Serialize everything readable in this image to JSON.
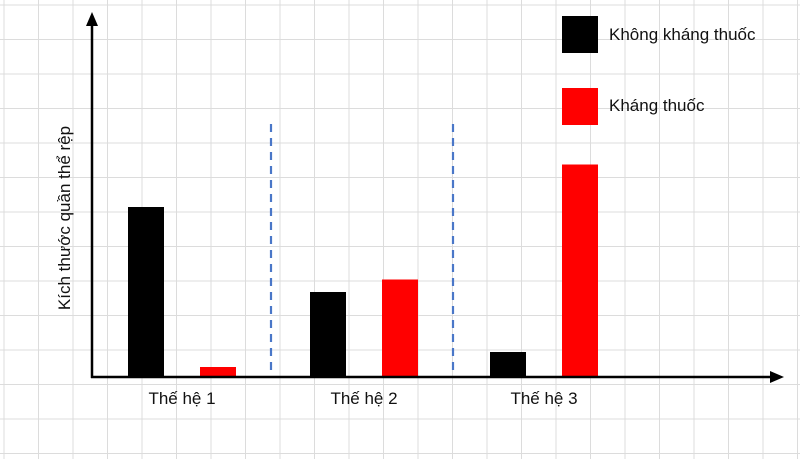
{
  "chart_data": {
    "type": "bar",
    "title": "",
    "xlabel": "",
    "ylabel": "Kích thước quần thể rệp",
    "categories": [
      "Thế hệ 1",
      "Thế hệ 2",
      "Thế hệ 3"
    ],
    "series": [
      {
        "name": "Không kháng thuốc",
        "color": "#000000",
        "values": [
          6.8,
          3.4,
          1.0
        ]
      },
      {
        "name": "Kháng thuốc",
        "color": "#ff0000",
        "values": [
          0.4,
          3.9,
          8.5
        ]
      }
    ],
    "ylim": [
      0,
      14
    ],
    "grid": true,
    "legend": "top-right",
    "axis_tick_labels": false,
    "separators": "dashed-blue",
    "separator_color": "#4a77c8"
  }
}
